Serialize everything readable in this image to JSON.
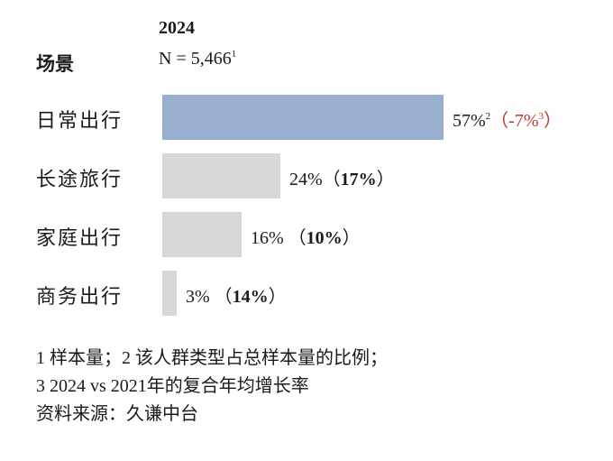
{
  "header": {
    "year": "2024",
    "scene_label": "场景",
    "n_text": "N = 5,466",
    "n_sup": "1"
  },
  "chart_data": {
    "type": "bar",
    "orientation": "horizontal",
    "categories": [
      "日常出行",
      "长途旅行",
      "家庭出行",
      "商务出行"
    ],
    "values": [
      57,
      24,
      16,
      3
    ],
    "value_labels": [
      "57%",
      "24%",
      "16%",
      "3%"
    ],
    "value_sup": [
      "2",
      "",
      "",
      ""
    ],
    "growth_labels": [
      "-7%",
      "17%",
      "10%",
      "14%"
    ],
    "growth_sup": [
      "3",
      "",
      "",
      ""
    ],
    "growth_open": [
      "（",
      "（",
      " （",
      " （"
    ],
    "growth_close": [
      "）",
      "）",
      "）",
      "）"
    ],
    "growth_bold": [
      false,
      true,
      true,
      true
    ],
    "colors": {
      "highlight": "#9aafd0",
      "default": "#d8d8d8",
      "negative": "#c0392b"
    },
    "highlight_index": 0,
    "grid": false
  },
  "footnotes": [
    "1 样本量；2 该人群类型占总样本量的比例；",
    "3 2024 vs 2021年的复合年均增长率",
    "资料来源：久谦中台"
  ]
}
